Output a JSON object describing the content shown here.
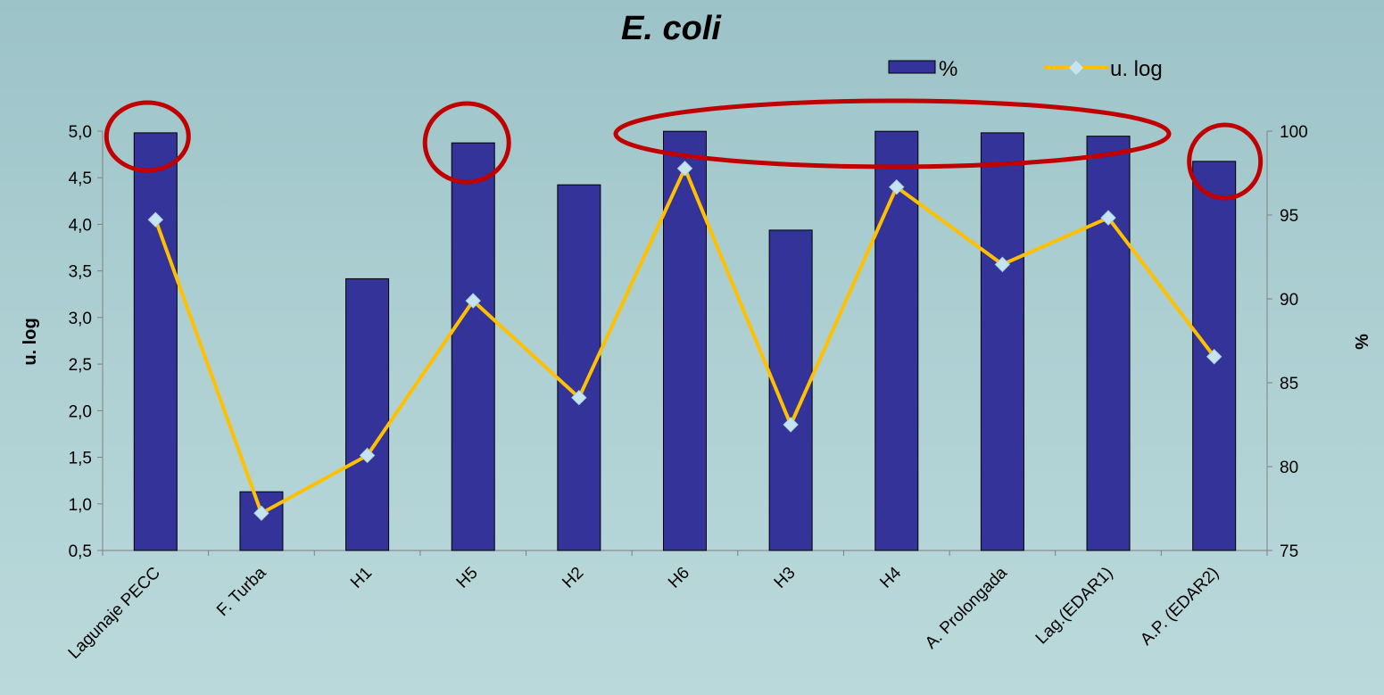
{
  "chart_data": {
    "type": "bar",
    "title": "E. coli",
    "ylabel": "u. log",
    "y2label": "%",
    "categories": [
      "Lagunaje PECC",
      "F. Turba",
      "H1",
      "H5",
      "H2",
      "H6",
      "H3",
      "H4",
      "A. Prolongada",
      "Lag.(EDAR1)",
      "A.P. (EDAR2)"
    ],
    "series": [
      {
        "name": "%",
        "type": "bar",
        "axis": "right",
        "color": "#333399",
        "values": [
          99.9,
          78.5,
          91.2,
          99.3,
          96.8,
          99.99,
          94.1,
          99.99,
          99.9,
          99.7,
          98.2
        ]
      },
      {
        "name": "u. log",
        "type": "line",
        "axis": "left",
        "color": "#ffc000",
        "marker_color": "#c6e4f0",
        "values": [
          4.05,
          0.9,
          1.52,
          3.18,
          2.14,
          4.6,
          1.85,
          4.4,
          3.57,
          4.07,
          2.58
        ]
      }
    ],
    "ylim": [
      0.5,
      5.0
    ],
    "y_ticks": [
      "0,5",
      "1,0",
      "1,5",
      "2,0",
      "2,5",
      "3,0",
      "3,5",
      "4,0",
      "4,5",
      "5,0"
    ],
    "y2lim": [
      75,
      100
    ],
    "y2_ticks": [
      "75",
      "80",
      "85",
      "90",
      "95",
      "100"
    ],
    "legend_position": "top-right",
    "grid": false,
    "annotation_color": "#c00000"
  }
}
